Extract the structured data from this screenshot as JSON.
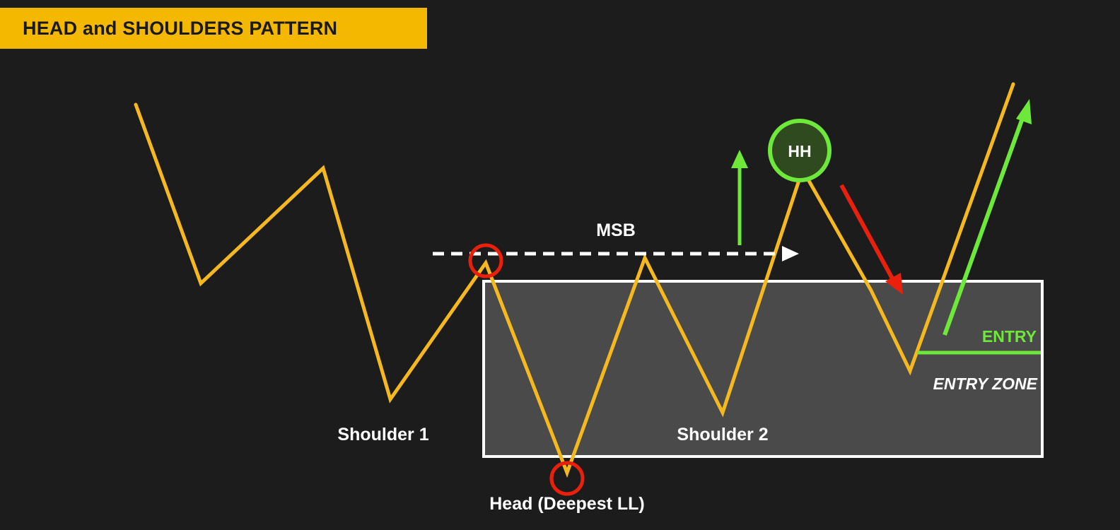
{
  "title": "HEAD and SHOULDERS PATTERN",
  "labels": {
    "msb": "MSB",
    "hh": "HH",
    "shoulder1": "Shoulder 1",
    "shoulder2": "Shoulder 2",
    "head": "Head (Deepest LL)",
    "entry": "ENTRY",
    "entry_zone": "ENTRY ZONE"
  },
  "colors": {
    "background": "#1c1c1c",
    "banner": "#f5b800",
    "price_line": "#f5b81f",
    "zone_fill": "#4a4a4a",
    "zone_border": "#ffffff",
    "red_marker": "#e8200c",
    "green": "#6ee83a",
    "hh_fill": "#2f4a1e",
    "text": "#ffffff"
  }
}
